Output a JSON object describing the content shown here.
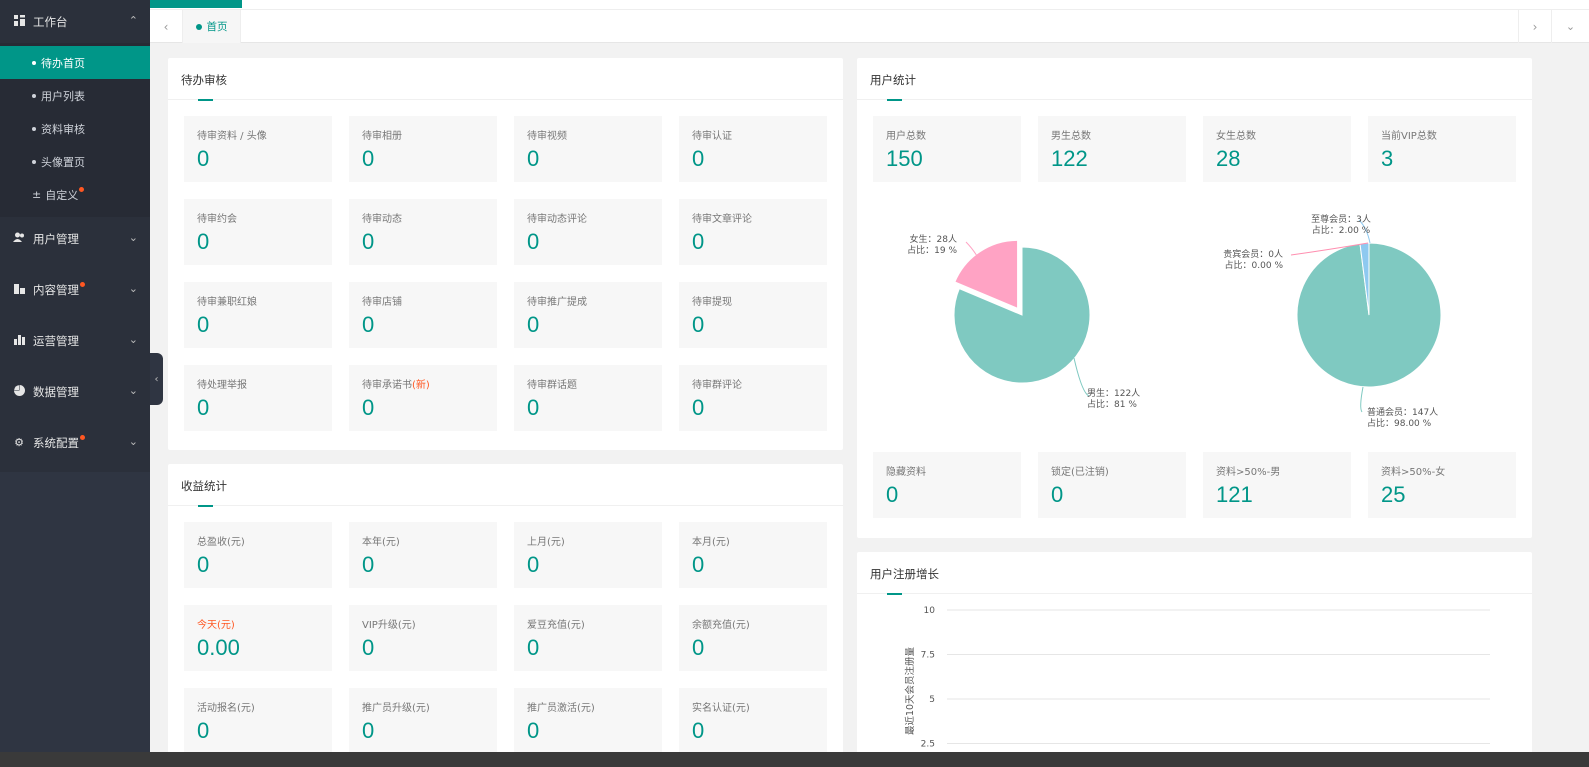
{
  "sidebar": {
    "workbench": {
      "label": "工作台",
      "items": [
        "待办首页",
        "用户列表",
        "资料审核",
        "头像置页",
        "自定义"
      ]
    },
    "groups": [
      "用户管理",
      "内容管理",
      "运营管理",
      "数据管理",
      "系统配置"
    ]
  },
  "tabs": {
    "home": "首页"
  },
  "pending": {
    "title": "待办审核",
    "items": [
      {
        "label": "待审资料 / 头像",
        "value": "0"
      },
      {
        "label": "待审相册",
        "value": "0"
      },
      {
        "label": "待审视频",
        "value": "0"
      },
      {
        "label": "待审认证",
        "value": "0"
      },
      {
        "label": "待审约会",
        "value": "0"
      },
      {
        "label": "待审动态",
        "value": "0"
      },
      {
        "label": "待审动态评论",
        "value": "0"
      },
      {
        "label": "待审文章评论",
        "value": "0"
      },
      {
        "label": "待审兼职红娘",
        "value": "0"
      },
      {
        "label": "待审店铺",
        "value": "0"
      },
      {
        "label": "待审推广提成",
        "value": "0"
      },
      {
        "label": "待审提现",
        "value": "0"
      },
      {
        "label": "待处理举报",
        "value": "0"
      },
      {
        "label": "待审承诺书",
        "label_flag": "(新)",
        "value": "0"
      },
      {
        "label": "待审群话题",
        "value": "0"
      },
      {
        "label": "待审群评论",
        "value": "0"
      }
    ]
  },
  "income": {
    "title": "收益统计",
    "items": [
      {
        "label": "总盈收(元)",
        "value": "0"
      },
      {
        "label": "本年(元)",
        "value": "0"
      },
      {
        "label": "上月(元)",
        "value": "0"
      },
      {
        "label": "本月(元)",
        "value": "0"
      },
      {
        "label": "今天(元)",
        "value": "0.00"
      },
      {
        "label": "VIP升级(元)",
        "value": "0"
      },
      {
        "label": "爱豆充值(元)",
        "value": "0"
      },
      {
        "label": "余额充值(元)",
        "value": "0"
      },
      {
        "label": "活动报名(元)",
        "value": "0"
      },
      {
        "label": "推广员升级(元)",
        "value": "0"
      },
      {
        "label": "推广员激活(元)",
        "value": "0"
      },
      {
        "label": "实名认证(元)",
        "value": "0"
      }
    ]
  },
  "user_stats": {
    "title": "用户统计",
    "top": [
      {
        "label": "用户总数",
        "value": "150"
      },
      {
        "label": "男生总数",
        "value": "122"
      },
      {
        "label": "女生总数",
        "value": "28"
      },
      {
        "label": "当前VIP总数",
        "value": "3"
      }
    ],
    "bottom": [
      {
        "label": "隐藏资料",
        "value": "0"
      },
      {
        "label": "锁定(已注销)",
        "value": "0"
      },
      {
        "label": "资料>50%-男",
        "value": "121"
      },
      {
        "label": "资料>50%-女",
        "value": "25"
      }
    ]
  },
  "registration": {
    "title": "用户注册增长"
  },
  "chart_data": [
    {
      "type": "pie",
      "title": "",
      "labels": [
        "男生",
        "女生"
      ],
      "values": [
        122,
        28
      ],
      "percents": [
        81,
        19
      ],
      "label_text": [
        [
          "男生：122人",
          "占比：81 %"
        ],
        [
          "女生：28人",
          "占比：19 %"
        ]
      ],
      "colors": [
        "#7fc9c1",
        "#ffa3c4"
      ]
    },
    {
      "type": "pie",
      "title": "",
      "labels": [
        "普通会员",
        "贵宾会员",
        "至尊会员"
      ],
      "values": [
        147,
        0,
        3
      ],
      "percents": [
        98.0,
        0.0,
        2.0
      ],
      "label_text": [
        [
          "普通会员：147人",
          "占比：98.00 %"
        ],
        [
          "贵宾会员：0人",
          "占比：0.00 %"
        ],
        [
          "至尊会员：3人",
          "占比：2.00 %"
        ]
      ],
      "colors": [
        "#7fc9c1",
        "#ff8fb0",
        "#8ec9f0"
      ]
    },
    {
      "type": "line",
      "title": "",
      "ylabel": "最近10天会员注册量",
      "ylim": [
        0,
        10
      ],
      "yticks": [
        "10",
        "7.5",
        "5",
        "2.5"
      ],
      "series": []
    }
  ]
}
